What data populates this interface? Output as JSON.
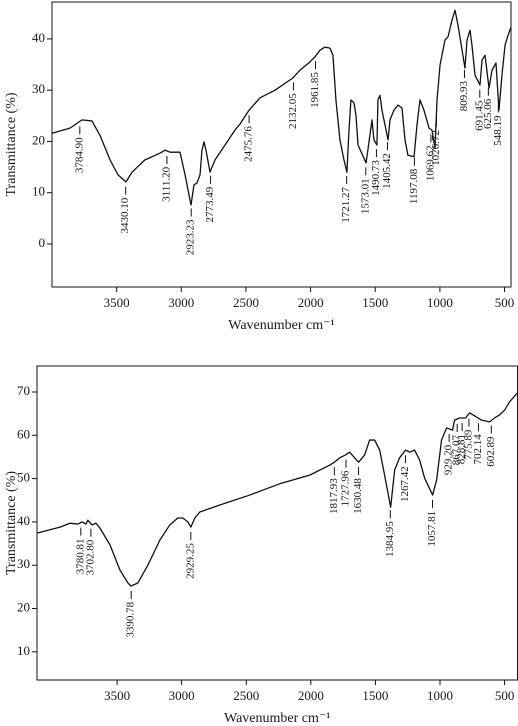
{
  "chart_data": [
    {
      "type": "line",
      "x_label": "Wavenumber cm⁻¹",
      "y_label": "Transmittance (%)",
      "color": "#111111",
      "xlim": [
        4000,
        450
      ],
      "ylim": [
        -8.4,
        47.2
      ],
      "xticks": [
        3500,
        3000,
        2500,
        2000,
        1500,
        1000,
        500
      ],
      "yticks": [
        0,
        10,
        20,
        30,
        40
      ],
      "x": [
        4000,
        3861,
        3768,
        3691,
        3629,
        3551,
        3490,
        3428,
        3381,
        3281,
        3165,
        3126,
        3087,
        3010,
        2971,
        2925,
        2902,
        2879,
        2855,
        2840,
        2824,
        2809,
        2778,
        2739,
        2662,
        2585,
        2546,
        2476,
        2391,
        2275,
        2136,
        2082,
        2005,
        1966,
        1927,
        1889,
        1850,
        1827,
        1804,
        1773,
        1742,
        1719,
        1703,
        1688,
        1664,
        1649,
        1633,
        1571,
        1541,
        1525,
        1510,
        1487,
        1479,
        1463,
        1448,
        1401,
        1386,
        1355,
        1324,
        1293,
        1270,
        1247,
        1200,
        1177,
        1154,
        1123,
        1084,
        1061,
        1038,
        1022,
        999,
        960,
        937,
        906,
        883,
        860,
        806,
        790,
        767,
        752,
        728,
        690,
        674,
        651,
        620,
        597,
        566,
        543,
        520,
        496,
        473,
        450
      ],
      "values": [
        21.6,
        22.6,
        24.2,
        24.0,
        21.2,
        16.4,
        13.5,
        12.1,
        14.0,
        16.4,
        17.7,
        18.3,
        17.9,
        17.9,
        13.5,
        7.6,
        11.5,
        11.9,
        13.5,
        18.3,
        19.9,
        18.3,
        14.0,
        16.4,
        19.3,
        22.2,
        23.4,
        26.1,
        28.5,
        30.0,
        32.4,
        33.9,
        35.5,
        36.5,
        37.8,
        38.4,
        38.2,
        36.8,
        28.1,
        20.3,
        16.4,
        14.0,
        22.2,
        28.1,
        27.5,
        25.1,
        19.3,
        15.8,
        21.2,
        24.2,
        20.3,
        19.3,
        28.1,
        29.0,
        26.1,
        20.3,
        24.2,
        26.1,
        27.1,
        26.5,
        20.3,
        17.3,
        17.0,
        23.2,
        28.1,
        26.1,
        22.6,
        22.2,
        18.7,
        28.1,
        34.9,
        39.8,
        40.4,
        43.7,
        45.6,
        42.7,
        34.3,
        39.8,
        41.7,
        38.8,
        32.9,
        31.0,
        35.9,
        36.8,
        30.4,
        33.9,
        35.3,
        26.1,
        32.9,
        38.8,
        40.7,
        42.3
      ],
      "annotations": [
        {
          "value": 3784.9,
          "label": "3784.90"
        },
        {
          "value": 3430.1,
          "label": "3430.10"
        },
        {
          "value": 3111.2,
          "label": "3111.20"
        },
        {
          "value": 2923.23,
          "label": "2923.23"
        },
        {
          "value": 2773.49,
          "label": "2773.49"
        },
        {
          "value": 2475.76,
          "label": "2475.76"
        },
        {
          "value": 2132.05,
          "label": "2132.05"
        },
        {
          "value": 1961.85,
          "label": "1961.85"
        },
        {
          "value": 1721.27,
          "label": "1721.27"
        },
        {
          "value": 1573.01,
          "label": "1573.01"
        },
        {
          "value": 1490.73,
          "label": "1490.73"
        },
        {
          "value": 1405.42,
          "label": "1405.42"
        },
        {
          "value": 1197.08,
          "label": "1197.08"
        },
        {
          "value": 1069.62,
          "label": "1069.62"
        },
        {
          "value": 1026.72,
          "label": "1026.72"
        },
        {
          "value": 809.93,
          "label": "809.93"
        },
        {
          "value": 691.45,
          "label": "691.45"
        },
        {
          "value": 625.06,
          "label": "625.06"
        },
        {
          "value": 548.19,
          "label": "548.19"
        }
      ]
    },
    {
      "type": "line",
      "x_label": "Wavenumber cm⁻¹",
      "y_label": "Transmittance (%)",
      "color": "#111111",
      "xlim": [
        4120,
        400
      ],
      "ylim": [
        3.5,
        76
      ],
      "xticks": [
        3500,
        3000,
        2500,
        2000,
        1500,
        1000,
        500
      ],
      "yticks": [
        10,
        20,
        30,
        40,
        50,
        60,
        70
      ],
      "x": [
        4120,
        3942,
        3865,
        3803,
        3772,
        3741,
        3726,
        3695,
        3664,
        3633,
        3555,
        3478,
        3416,
        3393,
        3339,
        3262,
        3169,
        3092,
        3030,
        2991,
        2952,
        2929,
        2898,
        2859,
        2705,
        2473,
        2241,
        2009,
        1855,
        1817,
        1777,
        1730,
        1700,
        1630,
        1583,
        1545,
        1506,
        1467,
        1429,
        1382,
        1351,
        1313,
        1266,
        1235,
        1197,
        1158,
        1119,
        1057,
        1026,
        988,
        949,
        903,
        887,
        849,
        802,
        771,
        733,
        678,
        617,
        578,
        539,
        500,
        462,
        400
      ],
      "values": [
        37.4,
        38.8,
        39.7,
        39.5,
        40.0,
        39.5,
        40.4,
        39.3,
        39.7,
        38.6,
        34.7,
        28.9,
        25.9,
        25.2,
        25.9,
        30.0,
        35.8,
        39.3,
        40.9,
        40.9,
        40.0,
        38.8,
        40.9,
        42.3,
        43.9,
        46.2,
        48.8,
        50.8,
        53.1,
        53.8,
        54.8,
        55.5,
        56.1,
        53.8,
        55.5,
        58.9,
        58.9,
        56.6,
        50.8,
        43.4,
        52.0,
        54.8,
        56.6,
        56.1,
        56.6,
        54.3,
        50.1,
        46.2,
        49.7,
        58.9,
        61.7,
        61.2,
        63.5,
        64.0,
        64.0,
        65.2,
        64.5,
        63.5,
        63.1,
        64.0,
        64.7,
        65.8,
        67.7,
        69.8
      ],
      "annotations": [
        {
          "value": 3780.81,
          "label": "3780.81"
        },
        {
          "value": 3702.8,
          "label": "3702.80"
        },
        {
          "value": 3390.78,
          "label": "3390.78"
        },
        {
          "value": 2929.25,
          "label": "2929.25"
        },
        {
          "value": 1817.93,
          "label": "1817.93"
        },
        {
          "value": 1727.96,
          "label": "1727.96"
        },
        {
          "value": 1630.48,
          "label": "1630.48"
        },
        {
          "value": 1384.95,
          "label": "1384.95"
        },
        {
          "value": 1267.42,
          "label": "1267.42"
        },
        {
          "value": 1057.81,
          "label": "1057.81"
        },
        {
          "value": 929.2,
          "label": "929.20"
        },
        {
          "value": 867.07,
          "label": "867.07"
        },
        {
          "value": 828.81,
          "label": "828.81"
        },
        {
          "value": 775.89,
          "label": "775.89"
        },
        {
          "value": 702.14,
          "label": "702.14"
        },
        {
          "value": 602.89,
          "label": "602.89"
        }
      ]
    }
  ]
}
